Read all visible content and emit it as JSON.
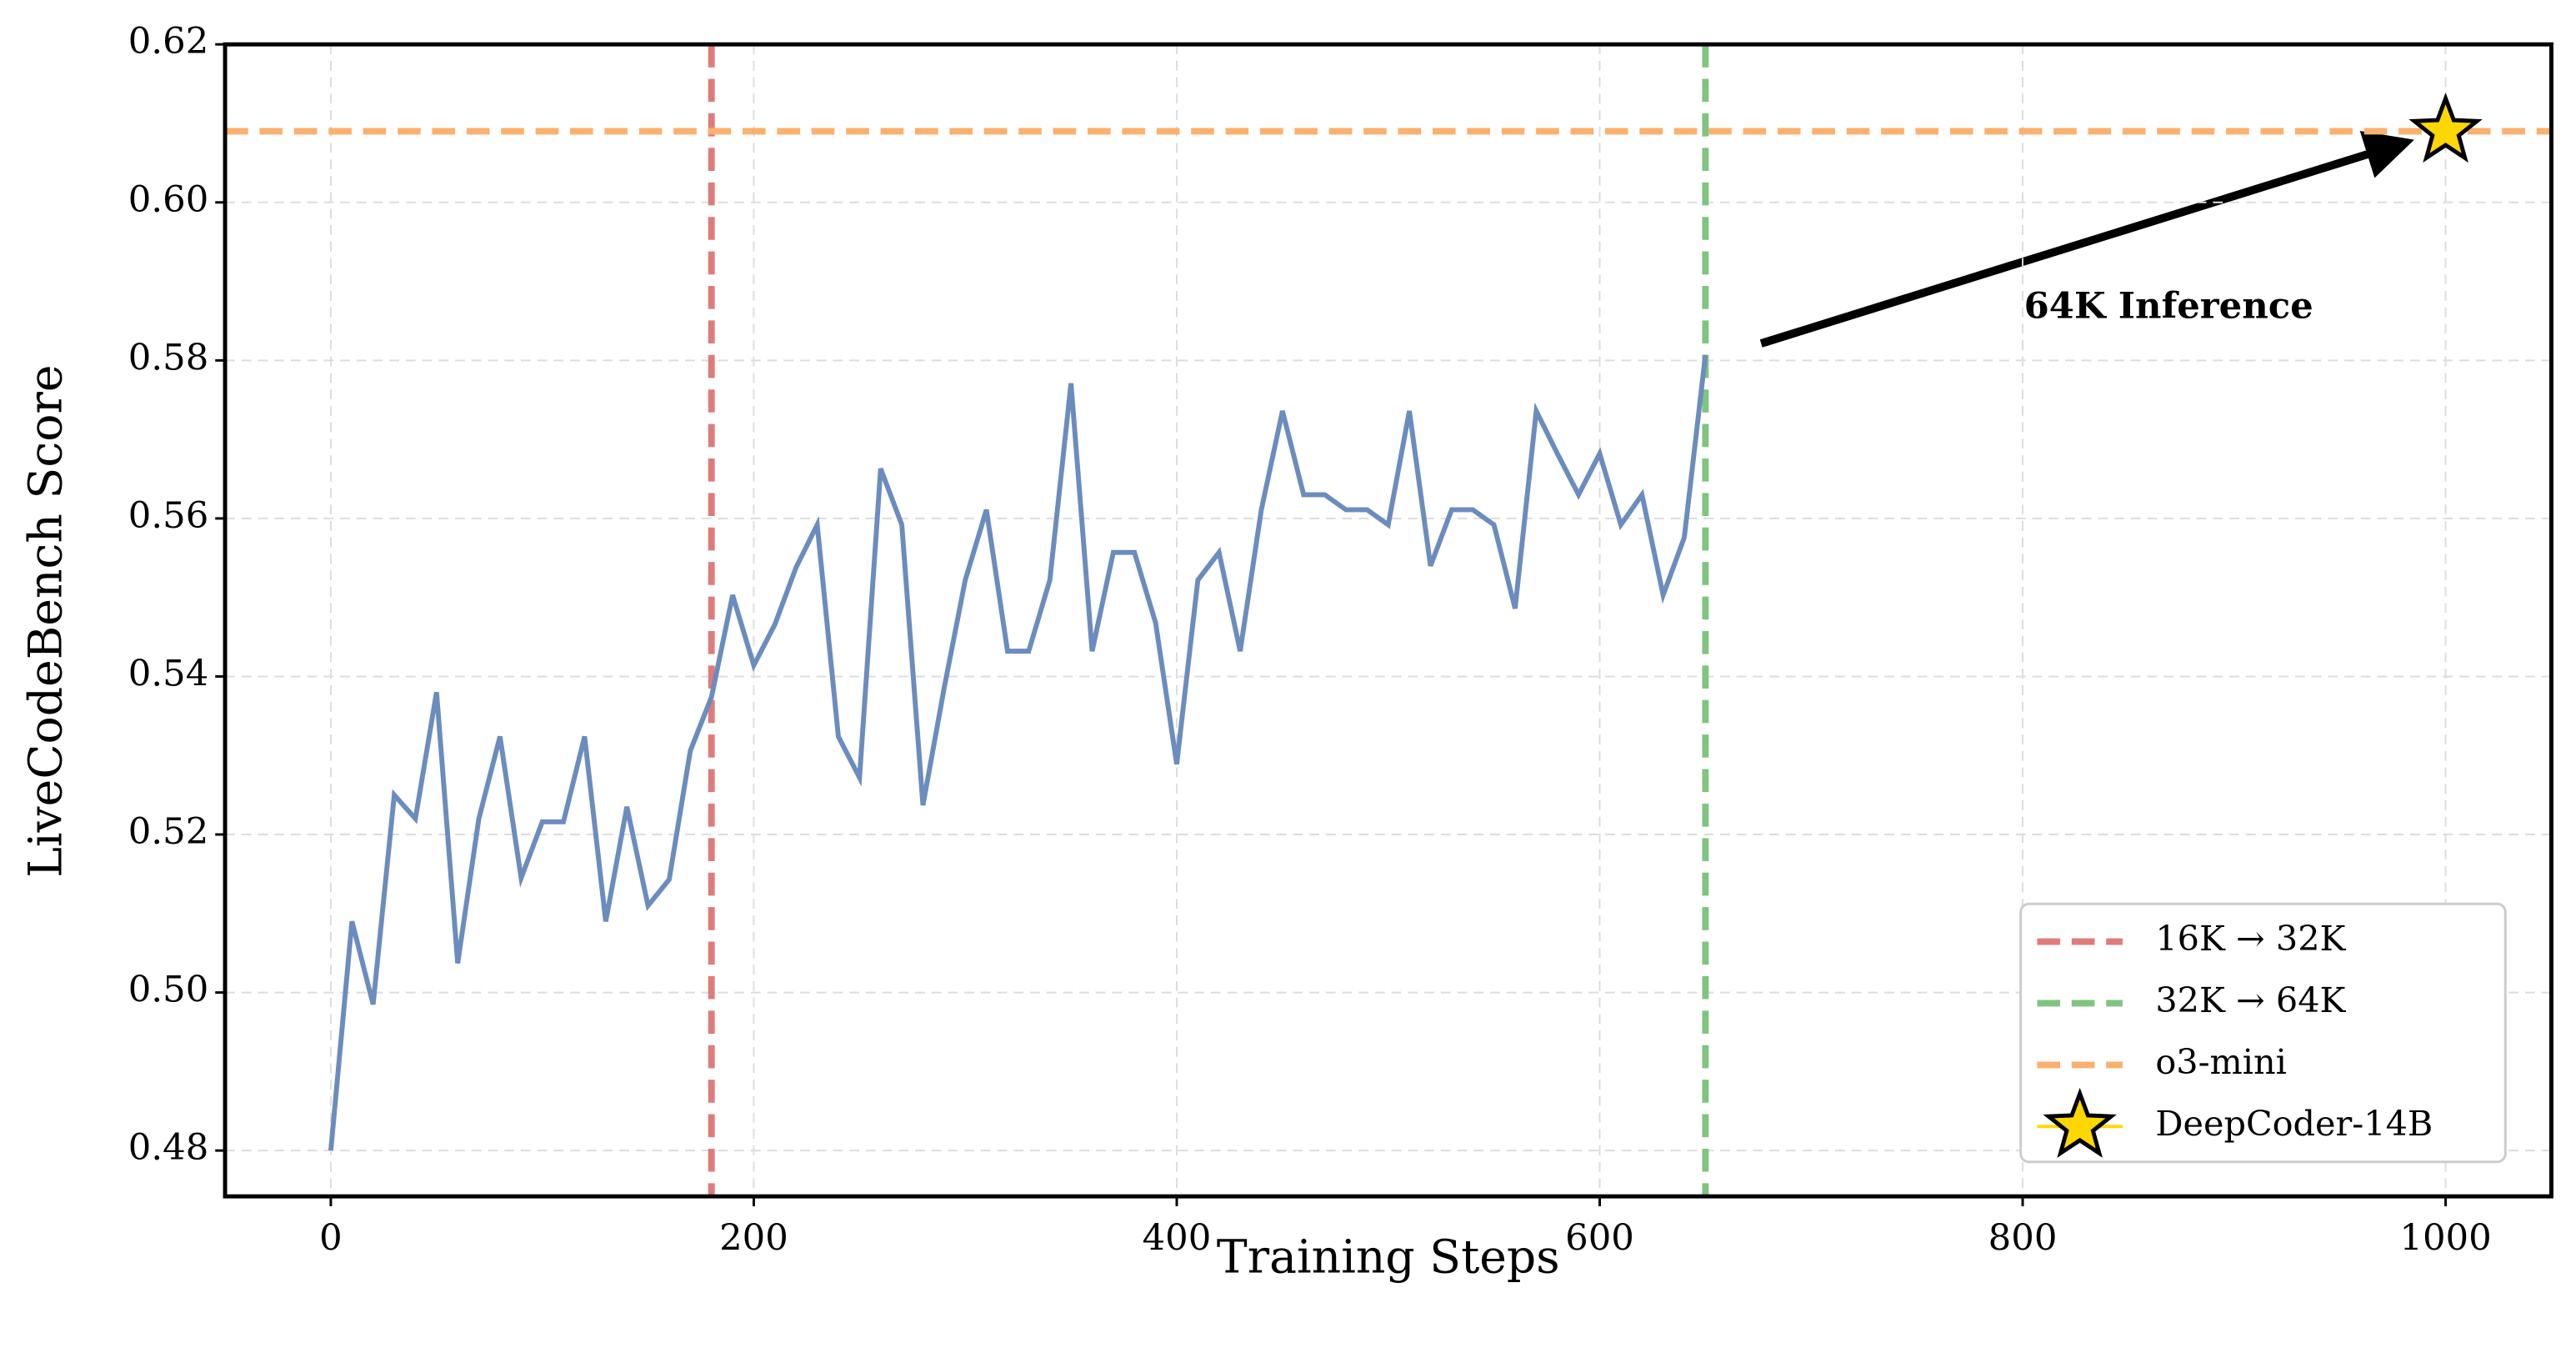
{
  "chart_data": {
    "type": "line",
    "xlabel": "Training Steps",
    "ylabel": "LiveCodeBench Score",
    "x": [
      0,
      10,
      20,
      30,
      40,
      50,
      60,
      70,
      80,
      90,
      100,
      110,
      120,
      130,
      140,
      150,
      160,
      170,
      180,
      190,
      200,
      210,
      220,
      230,
      240,
      250,
      260,
      270,
      280,
      290,
      300,
      310,
      320,
      330,
      340,
      350,
      360,
      370,
      380,
      390,
      400,
      410,
      420,
      430,
      440,
      450,
      460,
      470,
      480,
      490,
      500,
      510,
      520,
      530,
      540,
      550,
      560,
      570,
      580,
      590,
      600,
      610,
      620,
      630,
      640,
      650
    ],
    "values": [
      0.48,
      0.509,
      0.4985,
      0.525,
      0.522,
      0.538,
      0.5037,
      0.522,
      0.5324,
      0.5145,
      0.5216,
      0.5216,
      0.5324,
      0.509,
      0.5235,
      0.511,
      0.5143,
      0.5306,
      0.5374,
      0.5503,
      0.5414,
      0.5466,
      0.5538,
      0.5592,
      0.5324,
      0.5272,
      0.5663,
      0.5592,
      0.5237,
      0.5385,
      0.5522,
      0.5611,
      0.5432,
      0.5432,
      0.5522,
      0.5771,
      0.5432,
      0.5557,
      0.5557,
      0.5468,
      0.5289,
      0.5522,
      0.5557,
      0.5432,
      0.5611,
      0.5736,
      0.563,
      0.563,
      0.5611,
      0.5611,
      0.5592,
      0.5736,
      0.554,
      0.5611,
      0.5611,
      0.5592,
      0.5486,
      0.5736,
      0.5682,
      0.563,
      0.5682,
      0.5592,
      0.563,
      0.5503,
      0.5576,
      0.5807
    ],
    "color": "#6b8cbe",
    "vlines": [
      {
        "name": "16K → 32K",
        "color": "#e07b7b",
        "x": 180
      },
      {
        "name": "32K → 64K",
        "color": "#7fc47f",
        "x": 650
      }
    ],
    "hline": {
      "name": "o3-mini",
      "color": "#fbb06d",
      "y": 0.609
    },
    "marker": {
      "name": "DeepCoder-14B",
      "color": "#ffd700",
      "x": 1000,
      "y": 0.609
    },
    "annotation": "64K Inference",
    "xlim": [
      -50,
      1050
    ],
    "ylim": [
      0.4742,
      0.62
    ],
    "xticks": [
      0,
      200,
      400,
      600,
      800,
      1000
    ],
    "yticks": [
      0.48,
      {
        "value": 0.5,
        "label": "0.50"
      },
      0.52,
      0.54,
      0.56,
      0.58,
      {
        "value": 0.6,
        "label": "0.60"
      },
      0.62
    ],
    "grid": true,
    "legend": "lower right"
  }
}
